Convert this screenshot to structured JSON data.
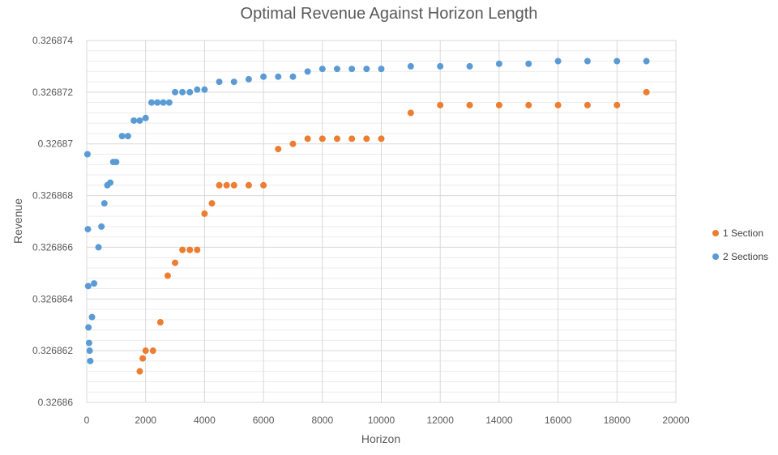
{
  "chart_data": {
    "type": "scatter",
    "title": "Optimal Revenue Against Horizon Length",
    "xlabel": "Horizon",
    "ylabel": "Revenue",
    "xlim": [
      0,
      20000
    ],
    "ylim": [
      0.32686,
      0.326874
    ],
    "x_ticks": [
      0,
      2000,
      4000,
      6000,
      8000,
      10000,
      12000,
      14000,
      16000,
      18000,
      20000
    ],
    "x_tick_labels": [
      "0",
      "2000",
      "4000",
      "6000",
      "8000",
      "10000",
      "12000",
      "14000",
      "16000",
      "18000",
      "20000"
    ],
    "y_ticks": [
      0.32686,
      0.326862,
      0.326864,
      0.326866,
      0.326868,
      0.32687,
      0.326872,
      0.326874
    ],
    "y_tick_labels": [
      "0.32686",
      "0.326862",
      "0.326864",
      "0.326866",
      "0.326868",
      "0.32687",
      "0.326872",
      "0.326874"
    ],
    "grid": true,
    "legend_position": "right",
    "series": [
      {
        "name": "1 Section",
        "color": "#ED7D31",
        "points": [
          [
            1800,
            0.3268612
          ],
          [
            1900,
            0.3268617
          ],
          [
            2000,
            0.326862
          ],
          [
            2250,
            0.326862
          ],
          [
            2500,
            0.3268631
          ],
          [
            2750,
            0.3268649
          ],
          [
            3000,
            0.3268654
          ],
          [
            3250,
            0.3268659
          ],
          [
            3500,
            0.3268659
          ],
          [
            3750,
            0.3268659
          ],
          [
            4000,
            0.3268673
          ],
          [
            4250,
            0.3268677
          ],
          [
            4500,
            0.3268684
          ],
          [
            4750,
            0.3268684
          ],
          [
            5000,
            0.3268684
          ],
          [
            5500,
            0.3268684
          ],
          [
            6000,
            0.3268684
          ],
          [
            6500,
            0.3268698
          ],
          [
            7000,
            0.32687
          ],
          [
            7500,
            0.3268702
          ],
          [
            8000,
            0.3268702
          ],
          [
            8500,
            0.3268702
          ],
          [
            9000,
            0.3268702
          ],
          [
            9500,
            0.3268702
          ],
          [
            10000,
            0.3268702
          ],
          [
            11000,
            0.3268712
          ],
          [
            12000,
            0.3268715
          ],
          [
            13000,
            0.3268715
          ],
          [
            14000,
            0.3268715
          ],
          [
            15000,
            0.3268715
          ],
          [
            16000,
            0.3268715
          ],
          [
            17000,
            0.3268715
          ],
          [
            18000,
            0.3268715
          ],
          [
            19000,
            0.326872
          ]
        ]
      },
      {
        "name": "2 Sections",
        "color": "#5B9BD5",
        "points": [
          [
            25,
            0.3268696
          ],
          [
            40,
            0.3268667
          ],
          [
            50,
            0.3268645
          ],
          [
            60,
            0.3268629
          ],
          [
            80,
            0.3268623
          ],
          [
            100,
            0.326862
          ],
          [
            120,
            0.3268616
          ],
          [
            180,
            0.3268633
          ],
          [
            250,
            0.3268646
          ],
          [
            400,
            0.326866
          ],
          [
            500,
            0.3268668
          ],
          [
            600,
            0.3268677
          ],
          [
            700,
            0.3268684
          ],
          [
            800,
            0.3268685
          ],
          [
            900,
            0.3268693
          ],
          [
            1000,
            0.3268693
          ],
          [
            1200,
            0.3268703
          ],
          [
            1400,
            0.3268703
          ],
          [
            1600,
            0.3268709
          ],
          [
            1800,
            0.3268709
          ],
          [
            2000,
            0.326871
          ],
          [
            2200,
            0.3268716
          ],
          [
            2400,
            0.3268716
          ],
          [
            2600,
            0.3268716
          ],
          [
            2800,
            0.3268716
          ],
          [
            3000,
            0.326872
          ],
          [
            3250,
            0.326872
          ],
          [
            3500,
            0.326872
          ],
          [
            3750,
            0.3268721
          ],
          [
            4000,
            0.3268721
          ],
          [
            4500,
            0.3268724
          ],
          [
            5000,
            0.3268724
          ],
          [
            5500,
            0.3268725
          ],
          [
            6000,
            0.3268726
          ],
          [
            6500,
            0.3268726
          ],
          [
            7000,
            0.3268726
          ],
          [
            7500,
            0.3268728
          ],
          [
            8000,
            0.3268729
          ],
          [
            8500,
            0.3268729
          ],
          [
            9000,
            0.3268729
          ],
          [
            9500,
            0.3268729
          ],
          [
            10000,
            0.3268729
          ],
          [
            11000,
            0.326873
          ],
          [
            12000,
            0.326873
          ],
          [
            13000,
            0.326873
          ],
          [
            14000,
            0.3268731
          ],
          [
            15000,
            0.3268731
          ],
          [
            16000,
            0.3268732
          ],
          [
            17000,
            0.3268732
          ],
          [
            18000,
            0.3268732
          ],
          [
            19000,
            0.3268732
          ]
        ]
      }
    ]
  }
}
